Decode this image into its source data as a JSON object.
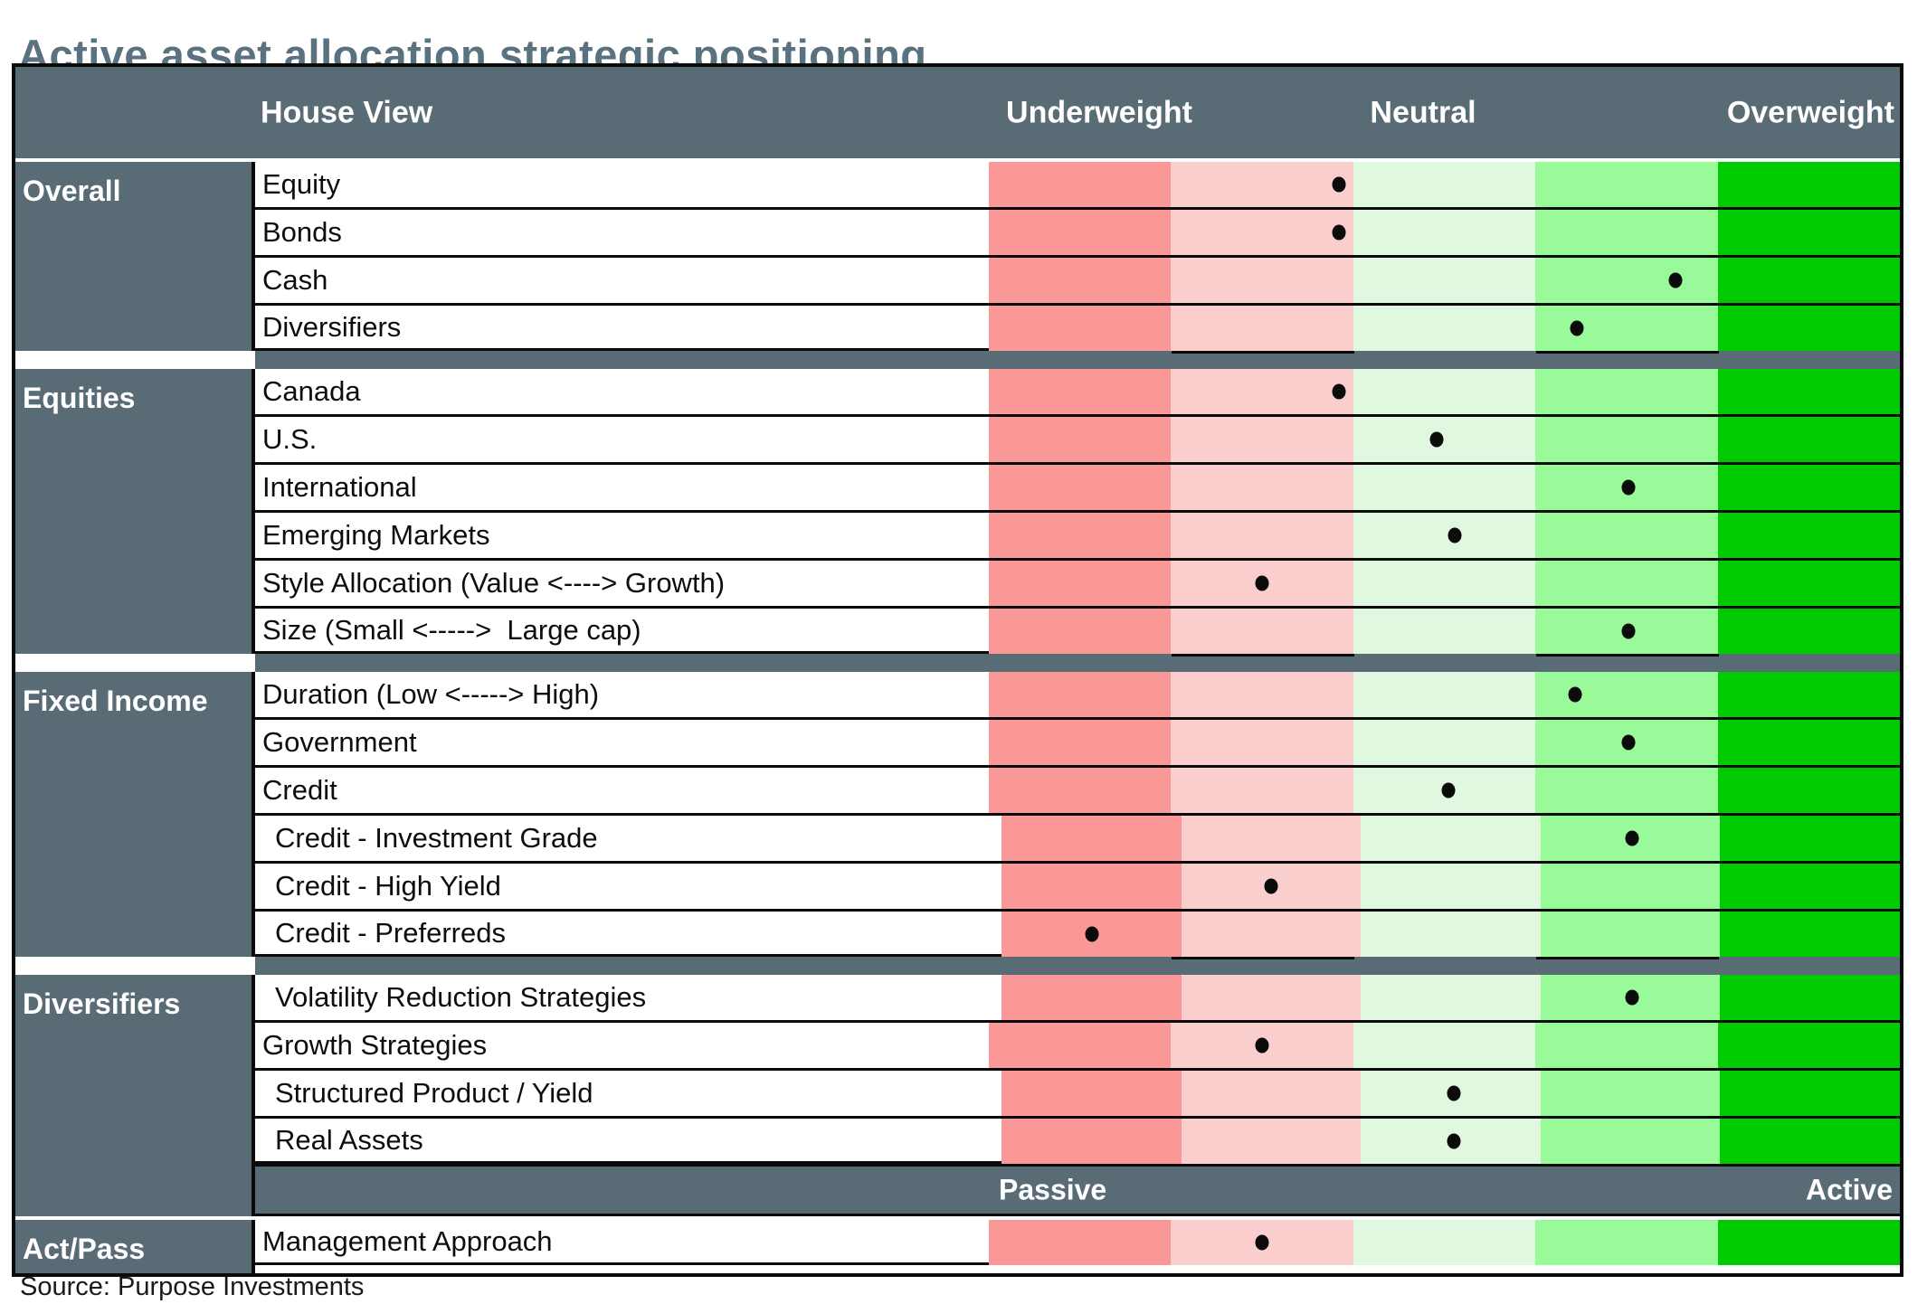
{
  "title": "Active asset allocation strategic positioning",
  "source": "Source: Purpose Investments",
  "header": {
    "house_view": "House View",
    "underweight": "Underweight",
    "neutral": "Neutral",
    "overweight": "Overweight"
  },
  "footer_bar": {
    "passive": "Passive",
    "active": "Active"
  },
  "colors": {
    "slate": "#596C76",
    "title_text": "#5A7280",
    "dot": "#0b0b0b",
    "divider": "#0b0b0b"
  },
  "chart_data": {
    "type": "table",
    "title": "Active asset allocation strategic positioning",
    "axis_labels": [
      "Underweight",
      "Neutral",
      "Overweight"
    ],
    "position_range": [
      0,
      100
    ],
    "bands": [
      {
        "name": "strong-underweight",
        "color": "#FA9898"
      },
      {
        "name": "underweight",
        "color": "#FBCECE"
      },
      {
        "name": "neutral",
        "color": "#DFF8DF"
      },
      {
        "name": "overweight",
        "color": "#98FA98"
      },
      {
        "name": "strong-overweight",
        "color": "#00CA00"
      }
    ],
    "groups": [
      {
        "label": "Overall",
        "rows": [
          {
            "label": "Equity",
            "position": 38.4,
            "indent": false
          },
          {
            "label": "Bonds",
            "position": 38.4,
            "indent": false
          },
          {
            "label": "Cash",
            "position": 75.4,
            "indent": false
          },
          {
            "label": "Diversifiers",
            "position": 64.5,
            "indent": false
          }
        ]
      },
      {
        "label": "Equities",
        "rows": [
          {
            "label": "Canada",
            "position": 38.4,
            "indent": false
          },
          {
            "label": "U.S.",
            "position": 49.2,
            "indent": false
          },
          {
            "label": "International",
            "position": 70.2,
            "indent": false
          },
          {
            "label": "Emerging Markets",
            "position": 51.1,
            "indent": false
          },
          {
            "label": "Style Allocation (Value <----> Growth)",
            "position": 30.0,
            "indent": false
          },
          {
            "label": "Size (Small <----->  Large cap)",
            "position": 70.2,
            "indent": false
          }
        ]
      },
      {
        "label": "Fixed Income",
        "rows": [
          {
            "label": "Duration (Low <-----> High)",
            "position": 64.3,
            "indent": false
          },
          {
            "label": "Government",
            "position": 70.2,
            "indent": false
          },
          {
            "label": "Credit",
            "position": 50.4,
            "indent": false
          },
          {
            "label": "Credit - Investment Grade",
            "position": 70.2,
            "indent": true
          },
          {
            "label": "Credit - High Yield",
            "position": 30.0,
            "indent": true
          },
          {
            "label": "Credit - Preferreds",
            "position": 10.1,
            "indent": true
          }
        ]
      },
      {
        "label": "Diversifiers",
        "rows": [
          {
            "label": "Volatility Reduction Strategies",
            "position": 70.2,
            "indent": true
          },
          {
            "label": "Growth Strategies",
            "position": 30.0,
            "indent": false
          },
          {
            "label": "Structured Product / Yield",
            "position": 50.4,
            "indent": true
          },
          {
            "label": "Real Assets",
            "position": 50.4,
            "indent": true
          }
        ]
      },
      {
        "label": "Act/Pass",
        "rows": [
          {
            "label": "Management Approach",
            "position": 30.0,
            "indent": false
          }
        ]
      }
    ]
  }
}
